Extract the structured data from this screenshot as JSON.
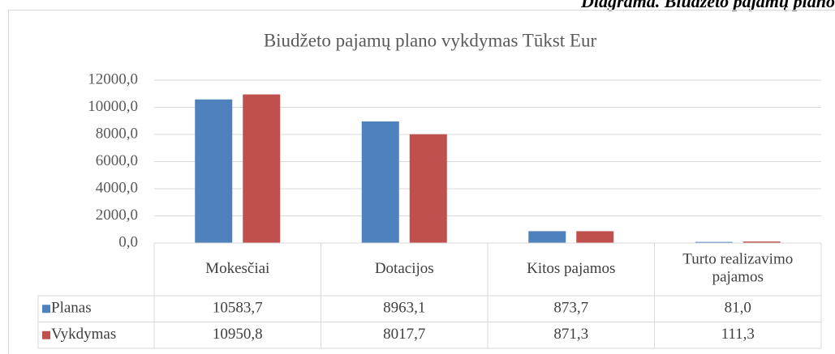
{
  "caption": "Diagrama. Biudžeto pajamų plano",
  "chart_data": {
    "type": "bar",
    "title": "Biudžeto pajamų plano vykdymas Tūkst Eur",
    "categories": [
      "Mokesčiai",
      "Dotacijos",
      "Kitos pajamos",
      "Turto realizavimo pajamos"
    ],
    "series": [
      {
        "name": "Planas",
        "color": "#4f81bd",
        "values": [
          10583.7,
          8963.1,
          873.7,
          81.0
        ],
        "value_labels": [
          "10583,7",
          "8963,1",
          "873,7",
          "81,0"
        ]
      },
      {
        "name": "Vykdymas",
        "color": "#c0504d",
        "values": [
          10950.8,
          8017.7,
          871.3,
          111.3
        ],
        "value_labels": [
          "10950,8",
          "8017,7",
          "871,3",
          "111,3"
        ]
      }
    ],
    "ylim": [
      0,
      12000
    ],
    "yticks": [
      {
        "value": 0,
        "label": "0,0"
      },
      {
        "value": 2000,
        "label": "2000,0"
      },
      {
        "value": 4000,
        "label": "4000,0"
      },
      {
        "value": 6000,
        "label": "6000,0"
      },
      {
        "value": 8000,
        "label": "8000,0"
      },
      {
        "value": 10000,
        "label": "10000,0"
      },
      {
        "value": 12000,
        "label": "12000,0"
      }
    ],
    "grid": true
  }
}
